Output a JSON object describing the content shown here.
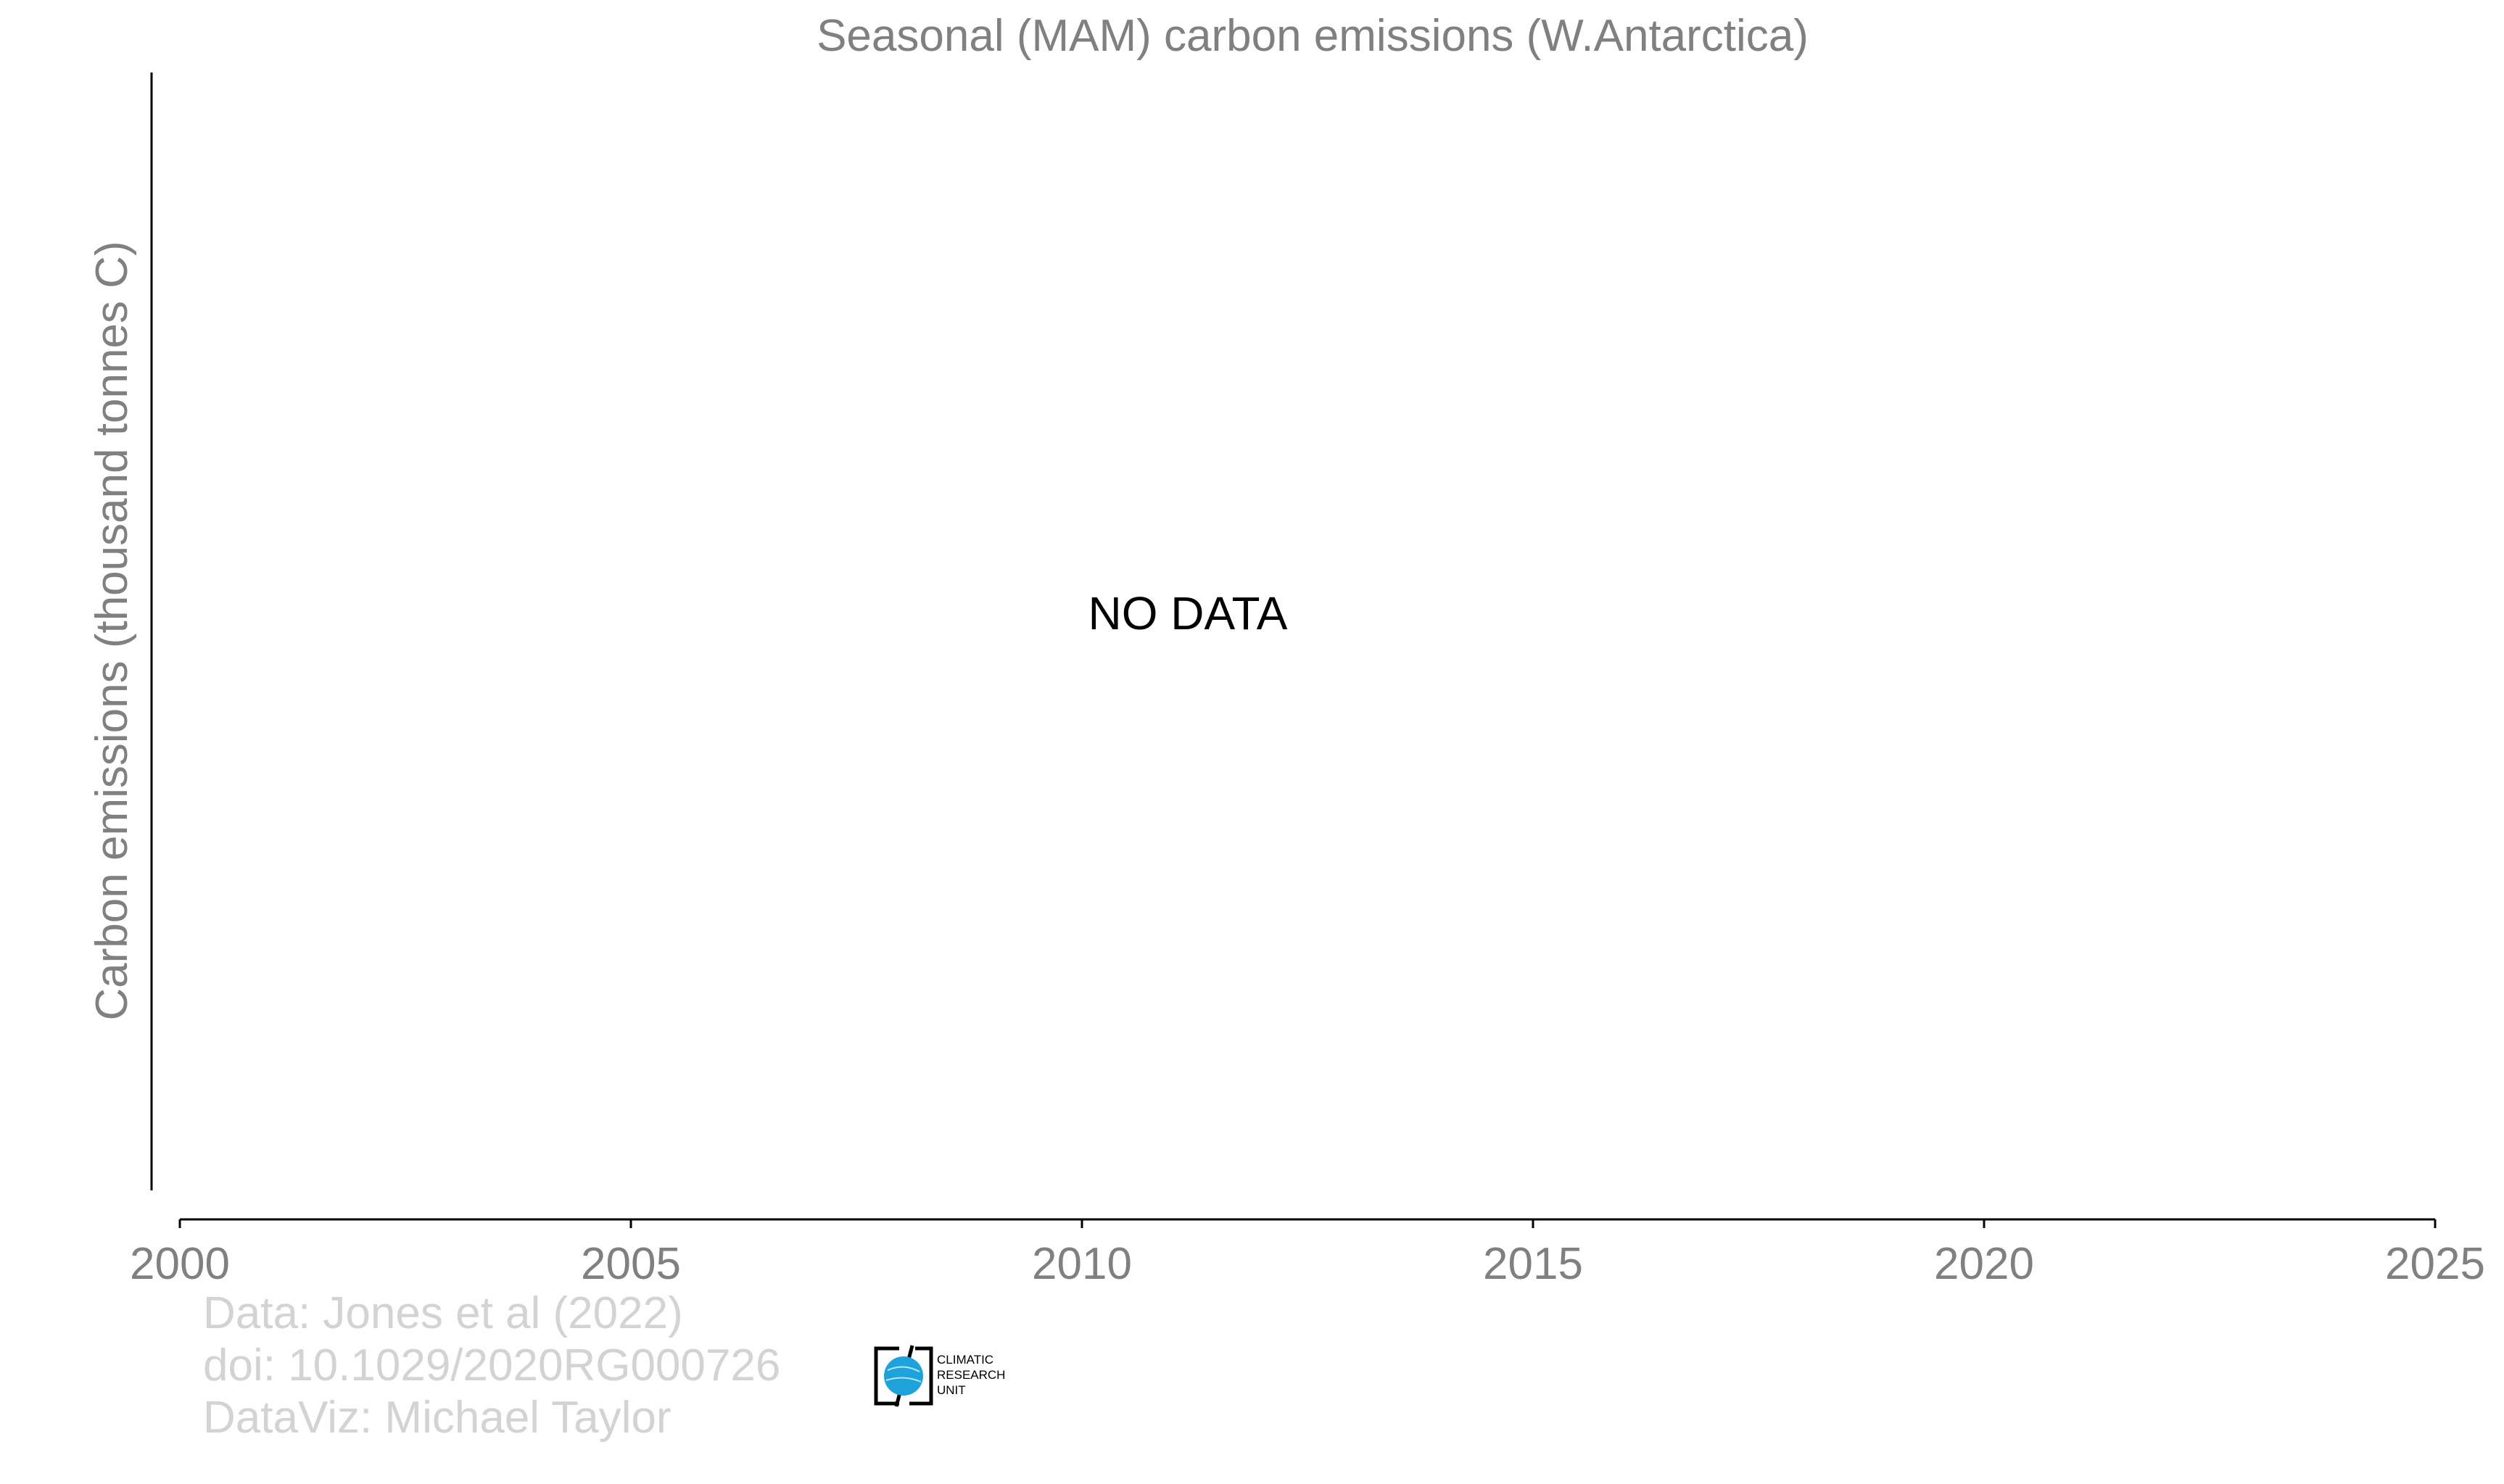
{
  "chart_data": {
    "type": "line",
    "title": "Seasonal (MAM) carbon emissions (W.Antarctica)",
    "xlabel": "",
    "ylabel": "Carbon emissions (thousand tonnes C)",
    "xlim": [
      2000,
      2025
    ],
    "xticks": [
      "2000",
      "2005",
      "2010",
      "2015",
      "2020",
      "2025"
    ],
    "series": [],
    "annotation": "NO DATA",
    "grid": false
  },
  "credits": {
    "data": "Data: Jones et al (2022)",
    "doi": "doi: 10.1029/2020RG000726",
    "dataviz": "DataViz: Michael Taylor"
  },
  "logo": {
    "lines": [
      "CLIMATIC",
      "RESEARCH",
      "UNIT"
    ],
    "globe_color": "#1ca3dc"
  },
  "colors": {
    "text_gray": "#808080",
    "credit_gray": "#d3d3d3",
    "axis": "#000000"
  }
}
